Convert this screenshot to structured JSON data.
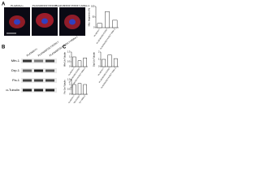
{
  "panel_a": {
    "label": "A",
    "images": [
      {
        "label": "PLA2G6+/+"
      },
      {
        "label": "PLA2G6D331Y/D331Y"
      },
      {
        "label": "PLA2G6D331Y/D331Y+Mdivi-1"
      }
    ]
  },
  "panel_b": {
    "label": "B",
    "lanes": [
      "PLA2G6+/+",
      "PLA2G6D331Y/D331Y",
      "PLA2G6D331Y/D331Y+Mdivi-1"
    ],
    "proteins": [
      "Mfn-1",
      "Drp-1",
      "Fis-1",
      "α-Tubulin"
    ]
  },
  "panel_c": {
    "label": "C"
  },
  "chart_data": [
    {
      "type": "bar",
      "y_label": "Mito. fragments (%)",
      "categories": [
        "PLA2G6+/+",
        "PLA2G6D331Y/D331Y",
        "PLA2G6D331Y/D331Y+Mdivi-1"
      ],
      "values": [
        20,
        75,
        35
      ],
      "ylim": [
        0,
        100
      ],
      "yticks": [
        0,
        50,
        100
      ],
      "color": "#ffffff"
    },
    {
      "type": "bar",
      "y_label": "Mfn-1/α-Tubulin",
      "categories": [
        "PLA2G6+/+",
        "PLA2G6D331Y/D331Y",
        "PLA2G6D331Y/D331Y+Mdivi-1"
      ],
      "values": [
        1,
        0.6,
        0.9
      ],
      "ylim": [
        0,
        1.5
      ],
      "yticks": [
        0,
        0.5,
        1,
        1.5
      ],
      "color": "#ffffff"
    },
    {
      "type": "bar",
      "y_label": "Drp-1/α-Tubulin",
      "categories": [
        "PLA2G6+/+",
        "PLA2G6D331Y/D331Y",
        "PLA2G6D331Y/D331Y+Mdivi-1"
      ],
      "values": [
        1,
        1.6,
        1.1
      ],
      "ylim": [
        0,
        2
      ],
      "yticks": [
        0,
        1,
        2
      ],
      "color": "#ffffff"
    },
    {
      "type": "bar",
      "y_label": "Fis-1/α-Tubulin",
      "categories": [
        "PLA2G6+/+",
        "PLA2G6D331Y/D331Y",
        "PLA2G6D331Y/D331Y+Mdivi-1"
      ],
      "values": [
        1,
        1.1,
        1
      ],
      "ylim": [
        0,
        1.5
      ],
      "yticks": [
        0,
        0.5,
        1,
        1.5
      ],
      "color": "#ffffff"
    }
  ]
}
